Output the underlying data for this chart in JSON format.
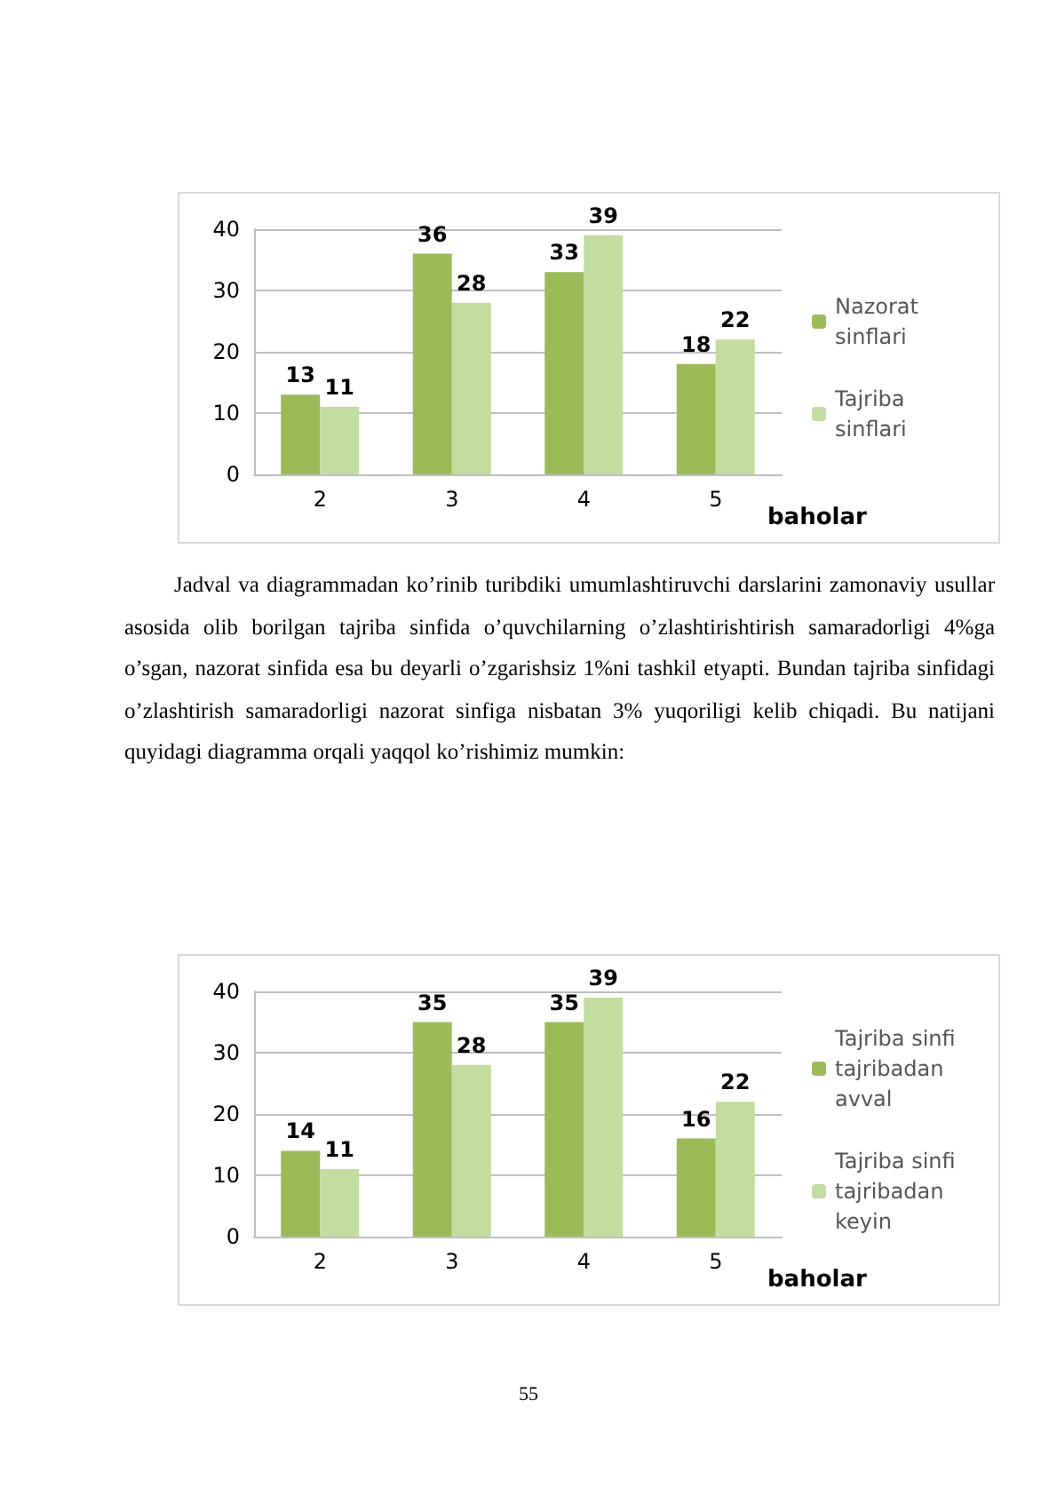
{
  "chart_data": [
    {
      "type": "bar",
      "categories": [
        "2",
        "3",
        "4",
        "5"
      ],
      "xlabel": "baholar",
      "ylim": [
        0,
        40
      ],
      "yticks": [
        0,
        10,
        20,
        30,
        40
      ],
      "grid": "y",
      "legend": "right",
      "data_labels": true,
      "series": [
        {
          "name": "Nazorat sinflari",
          "color": "#9bbb59",
          "values": [
            13,
            36,
            33,
            18
          ]
        },
        {
          "name": "Tajriba sinflari",
          "color": "#c3dc9f",
          "values": [
            11,
            28,
            39,
            22
          ]
        }
      ],
      "annotations": [
        "Jadval va diagrammadan ko’rinib turibdiki umumlashtiruvchi darslarini zamonaviy usullar asosida olib borilgan tajriba sinfida o’quvchilarning o’zlashtirishtirish samaradorligi 4%ga o’sgan, nazorat sinfida esa bu deyarli o’zgarishsiz 1%ni tashkil etyapti. Bundan tajriba sinfidagi o’zlashtirish samaradorligi nazorat sinfiga nisbatan 3% yuqoriligi kelib chiqadi. Bu natijani quyidagi diagramma orqali yaqqol ko’rishimiz mumkin:"
      ]
    },
    {
      "type": "bar",
      "categories": [
        "2",
        "3",
        "4",
        "5"
      ],
      "xlabel": "baholar",
      "ylim": [
        0,
        40
      ],
      "yticks": [
        0,
        10,
        20,
        30,
        40
      ],
      "grid": "y",
      "legend": "right",
      "data_labels": true,
      "series": [
        {
          "name": "Tajriba sinfi tajribadan avval",
          "color": "#9bbb59",
          "values": [
            14,
            35,
            35,
            16
          ]
        },
        {
          "name": "Tajriba sinfi tajribadan keyin",
          "color": "#c3dc9f",
          "values": [
            11,
            28,
            39,
            22
          ]
        }
      ],
      "annotations": [
        "55"
      ]
    }
  ]
}
